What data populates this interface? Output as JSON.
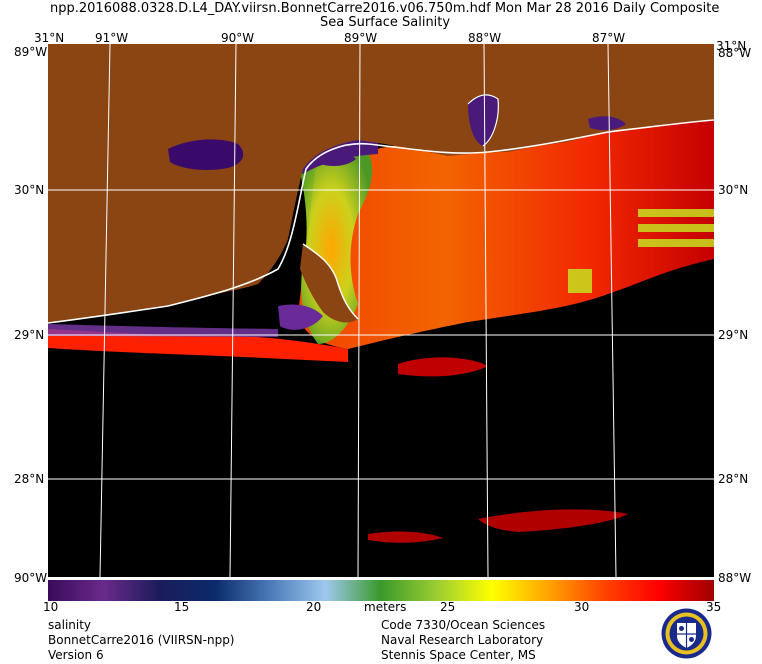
{
  "title_line1": "npp.2016088.0328.D.L4_DAY.viirsn.BonnetCarre2016.v06.750m.hdf   Mon Mar 28 2016 Daily Composite",
  "title_line2": "Sea Surface Salinity",
  "map": {
    "lon_labels_top": [
      "91°W",
      "90°W",
      "89°W",
      "88°W",
      "87°W"
    ],
    "lon_labels_bottom": [
      "90°W",
      "88°W"
    ],
    "lat_labels_left": [
      "31°N",
      "30°N",
      "29°N",
      "28°N"
    ],
    "lat_labels_right": [
      "31°N",
      "30°N",
      "29°N",
      "28°N"
    ],
    "corner_top_left": "31°N",
    "corner_top_right": "31°N",
    "corner_left_top": "89°W",
    "corner_right_top": "88°W",
    "corner_left_bottom": "90°W",
    "corner_right_bottom": "88°W",
    "colors": {
      "land": "#8b4513",
      "no_data": "#000000",
      "coast": "#ffffff",
      "grid": "#ffffff"
    }
  },
  "colorbar": {
    "ticks": [
      "10",
      "15",
      "20",
      "25",
      "30",
      "35"
    ],
    "unit": "meters",
    "stops": [
      "#3a0a5a",
      "#6a2a8a",
      "#1c1c5a",
      "#0a2a6a",
      "#4a7ab8",
      "#9ec8ee",
      "#3a9a2a",
      "#9acd32",
      "#ffff00",
      "#ffa500",
      "#ff4500",
      "#ff0000",
      "#a00000"
    ]
  },
  "footer": {
    "left": [
      "salinity",
      "BonnetCarre2016 (VIIRSN-npp)",
      "Version 6"
    ],
    "right": [
      "Code 7330/Ocean Sciences",
      "Naval Research Laboratory",
      "Stennis Space Center, MS"
    ]
  }
}
